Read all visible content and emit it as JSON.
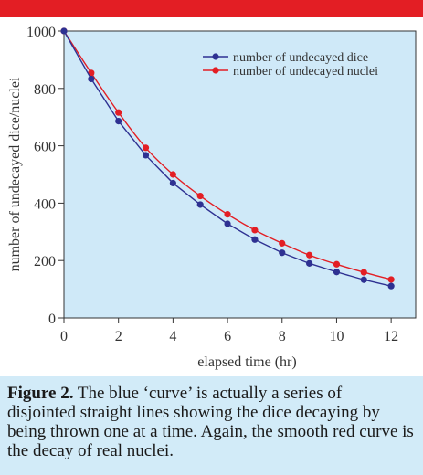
{
  "chart_data": {
    "type": "line",
    "xlabel": "elapsed time (hr)",
    "ylabel": "number of undecayed dice/nuclei",
    "xlim": [
      0,
      12.9
    ],
    "ylim": [
      0,
      1000
    ],
    "x_ticks": [
      0,
      2,
      4,
      6,
      8,
      10,
      12
    ],
    "y_ticks": [
      0,
      200,
      400,
      600,
      800,
      1000
    ],
    "grid": false,
    "legend_position": "top-right",
    "series": [
      {
        "name": "number of undecayed dice",
        "color": "#2e3192",
        "smooth": false,
        "x": [
          0,
          1,
          2,
          3,
          4,
          5,
          6,
          7,
          8,
          9,
          10,
          11,
          12
        ],
        "y": [
          1000,
          833,
          686,
          567,
          470,
          395,
          328,
          273,
          227,
          190,
          160,
          133,
          111
        ]
      },
      {
        "name": "number of undecayed nuclei",
        "color": "#e31e24",
        "smooth": true,
        "x": [
          0,
          1,
          2,
          3,
          4,
          5,
          6,
          7,
          8,
          9,
          10,
          11,
          12
        ],
        "y": [
          1000,
          854,
          716,
          593,
          500,
          425,
          361,
          306,
          260,
          219,
          187,
          159,
          134
        ]
      }
    ]
  },
  "caption": {
    "lead": "Figure 2.",
    "text": " The blue ‘curve’ is actually a series of disjointed straight lines showing the dice decaying by being thrown one at a time. Again, the smooth red curve is the decay of real nuclei."
  }
}
